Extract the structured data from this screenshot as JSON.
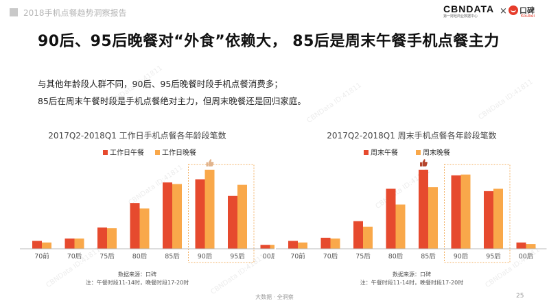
{
  "header": {
    "report_title": "2018手机点餐趋势洞察报告",
    "cbn_logo": "CBNDATA",
    "cbn_sub": "第一财经商业数据中心",
    "times": "×",
    "koubei_logo": "口碑",
    "koubei_sub": "Koubei"
  },
  "headline": "90后、95后晚餐对“外食”依赖大， 85后是周末午餐手机点餐主力",
  "description": {
    "line1": "与其他年龄段人群不同，90后、95后晚餐时段手机点餐消费多；",
    "line2": "85后在周末午餐时段是手机点餐绝对主力，但周末晚餐还是回归家庭。"
  },
  "watermark": "CBNData ID:41811",
  "colors": {
    "lunch": "#e64a2e",
    "dinner": "#f9a84a",
    "highlight_box": "#f3b061",
    "axis": "#bbbbbb",
    "thumb": "#e2b48c"
  },
  "chart_data": [
    {
      "type": "bar",
      "title": "2017Q2-2018Q1 工作日手机点餐各年龄段笔数",
      "categories": [
        "70前",
        "70后",
        "75后",
        "80后",
        "85后",
        "90后",
        "95后",
        "00后"
      ],
      "series": [
        {
          "name": "工作日午餐",
          "values": [
            10,
            13,
            27,
            58,
            84,
            88,
            67,
            5
          ]
        },
        {
          "name": "工作日晚餐",
          "values": [
            8,
            13,
            26,
            51,
            82,
            100,
            81,
            5
          ]
        }
      ],
      "ylim": [
        0,
        105
      ],
      "highlight": [
        "90后",
        "95后"
      ],
      "thumb_over": "90后",
      "source": "数据来源：口碑",
      "note": "注：午餐时段11-14时，晚餐时段17-20时"
    },
    {
      "type": "bar",
      "title": "2017Q2-2018Q1 周末手机点餐各年龄段笔数",
      "categories": [
        "70前",
        "70后",
        "75后",
        "80后",
        "85后",
        "90后",
        "95后",
        "00后"
      ],
      "series": [
        {
          "name": "周末午餐",
          "values": [
            10,
            14,
            35,
            76,
            100,
            93,
            73,
            8
          ]
        },
        {
          "name": "周末晚餐",
          "values": [
            8,
            13,
            28,
            56,
            78,
            94,
            76,
            6
          ]
        }
      ],
      "ylim": [
        0,
        105
      ],
      "highlight": [
        "90后",
        "95后"
      ],
      "thumb_over": "85后",
      "source": "数据来源：口碑",
      "note": "注：午餐时段11-14时，晚餐时段17-20时"
    }
  ],
  "footer": {
    "slogan": "大数据 · 全洞察",
    "page": "25"
  }
}
